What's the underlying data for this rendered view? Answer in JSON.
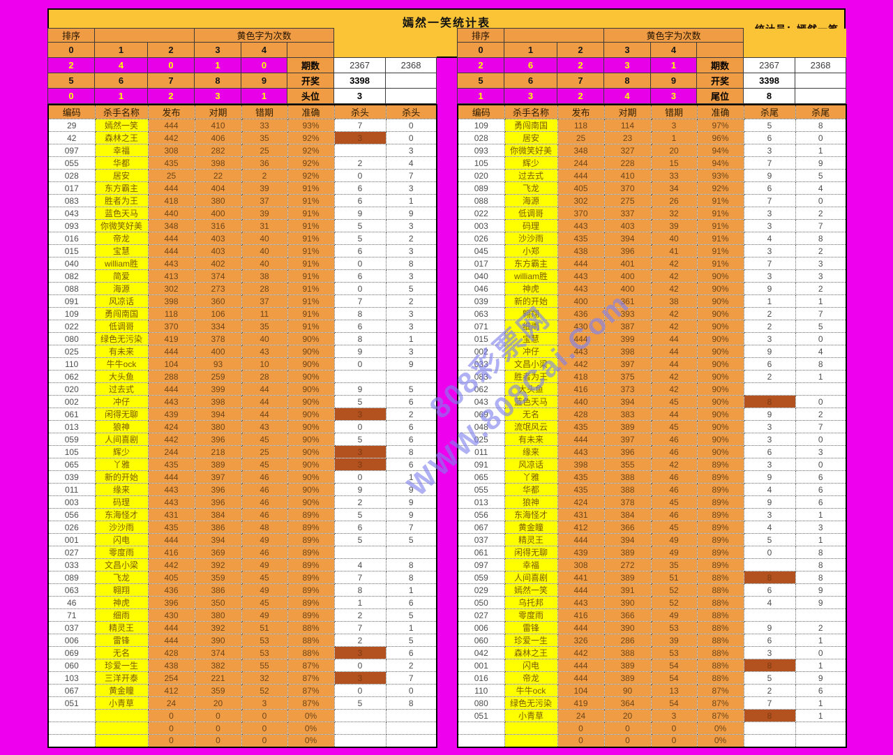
{
  "title": "嫣然一笑统计表",
  "statistician": "统计员：嫣然一笑",
  "colors": {
    "page_bg": "#EE00EE",
    "gold_band": "#FBC437",
    "orange_cell": "#F09C44",
    "yellow_cell": "#FFFF00",
    "magenta_row": "#E800E8",
    "highlight_cell": "#B3511F",
    "watermark": "#8080EE"
  },
  "watermark": {
    "line1": "808彩票网",
    "line2": "WWW.808Cai.Com"
  },
  "tables": [
    {
      "id": "head",
      "sort_label": "排序",
      "note": "黄色字为次数",
      "digits_top": [
        "0",
        "1",
        "2",
        "3",
        "4"
      ],
      "counts_top": [
        "2",
        "4",
        "0",
        "1",
        "0"
      ],
      "digits_bottom": [
        "5",
        "6",
        "7",
        "8",
        "9"
      ],
      "counts_bottom": [
        "0",
        "1",
        "2",
        "3",
        "1"
      ],
      "period_label": "期数",
      "periods": [
        "2367",
        "2368"
      ],
      "draw_label": "开奖",
      "draw_value": "3398",
      "position_label": "头位",
      "position_value": "3",
      "columns": [
        "编码",
        "杀手名称",
        "发布",
        "对期",
        "错期",
        "准确",
        "杀头",
        "杀头"
      ],
      "highlights": [
        1,
        23,
        26,
        27,
        42,
        44
      ],
      "rows": [
        [
          "29",
          "嫣然一笑",
          "444",
          "410",
          "33",
          "93%",
          "7",
          "0"
        ],
        [
          "42",
          "森林之王",
          "442",
          "406",
          "35",
          "92%",
          "3",
          "0"
        ],
        [
          "097",
          "幸福",
          "308",
          "282",
          "25",
          "92%",
          "",
          "3"
        ],
        [
          "055",
          "华都",
          "435",
          "398",
          "36",
          "92%",
          "2",
          "4"
        ],
        [
          "028",
          "居安",
          "25",
          "22",
          "2",
          "92%",
          "0",
          "7"
        ],
        [
          "017",
          "东方霸主",
          "444",
          "404",
          "39",
          "91%",
          "6",
          "3"
        ],
        [
          "083",
          "胜者为王",
          "418",
          "380",
          "37",
          "91%",
          "6",
          "1"
        ],
        [
          "043",
          "蓝色天马",
          "440",
          "400",
          "39",
          "91%",
          "9",
          "9"
        ],
        [
          "093",
          "你微笑好美",
          "348",
          "316",
          "31",
          "91%",
          "5",
          "3"
        ],
        [
          "016",
          "帝龙",
          "444",
          "403",
          "40",
          "91%",
          "5",
          "2"
        ],
        [
          "015",
          "宝慧",
          "444",
          "403",
          "40",
          "91%",
          "6",
          "3"
        ],
        [
          "040",
          "william胜",
          "443",
          "402",
          "40",
          "91%",
          "0",
          "8"
        ],
        [
          "082",
          "简爱",
          "413",
          "374",
          "38",
          "91%",
          "6",
          "3"
        ],
        [
          "088",
          "海源",
          "302",
          "273",
          "28",
          "91%",
          "0",
          "5"
        ],
        [
          "091",
          "风凉话",
          "398",
          "360",
          "37",
          "91%",
          "7",
          "2"
        ],
        [
          "109",
          "勇闯南国",
          "118",
          "106",
          "11",
          "91%",
          "8",
          "3"
        ],
        [
          "022",
          "低调哥",
          "370",
          "334",
          "35",
          "91%",
          "6",
          "3"
        ],
        [
          "080",
          "绿色无污染",
          "419",
          "378",
          "40",
          "90%",
          "8",
          "1"
        ],
        [
          "025",
          "有未来",
          "444",
          "400",
          "43",
          "90%",
          "9",
          "3"
        ],
        [
          "110",
          "牛牛ock",
          "104",
          "93",
          "10",
          "90%",
          "0",
          "9"
        ],
        [
          "062",
          "大头鱼",
          "288",
          "259",
          "28",
          "90%",
          "",
          ""
        ],
        [
          "020",
          "过去式",
          "444",
          "399",
          "44",
          "90%",
          "9",
          "5"
        ],
        [
          "002",
          "冲仔",
          "443",
          "398",
          "44",
          "90%",
          "5",
          "6"
        ],
        [
          "061",
          "闲得无聊",
          "439",
          "394",
          "44",
          "90%",
          "3",
          "2"
        ],
        [
          "013",
          "狼神",
          "424",
          "380",
          "43",
          "90%",
          "0",
          "6"
        ],
        [
          "059",
          "人间喜剧",
          "442",
          "396",
          "45",
          "90%",
          "5",
          "6"
        ],
        [
          "105",
          "辉少",
          "244",
          "218",
          "25",
          "90%",
          "3",
          "8"
        ],
        [
          "065",
          "丫雅",
          "435",
          "389",
          "45",
          "90%",
          "3",
          "6"
        ],
        [
          "039",
          "新的开始",
          "444",
          "397",
          "46",
          "90%",
          "0",
          "1"
        ],
        [
          "011",
          "缘来",
          "443",
          "396",
          "46",
          "90%",
          "9",
          "9"
        ],
        [
          "003",
          "码理",
          "443",
          "396",
          "46",
          "90%",
          "2",
          "9"
        ],
        [
          "056",
          "东海怪才",
          "431",
          "384",
          "46",
          "89%",
          "5",
          "9"
        ],
        [
          "026",
          "沙沙雨",
          "435",
          "386",
          "48",
          "89%",
          "6",
          "7"
        ],
        [
          "001",
          "闪电",
          "444",
          "394",
          "49",
          "89%",
          "5",
          "5"
        ],
        [
          "027",
          "零度雨",
          "416",
          "369",
          "46",
          "89%",
          "",
          ""
        ],
        [
          "033",
          "文昌小梁",
          "442",
          "392",
          "49",
          "89%",
          "4",
          "8"
        ],
        [
          "089",
          "飞龙",
          "405",
          "359",
          "45",
          "89%",
          "7",
          "8"
        ],
        [
          "063",
          "翱翔",
          "436",
          "386",
          "49",
          "89%",
          "8",
          "1"
        ],
        [
          "46",
          "神虎",
          "396",
          "350",
          "45",
          "89%",
          "1",
          "6"
        ],
        [
          "71",
          "细雨",
          "430",
          "380",
          "49",
          "89%",
          "2",
          "5"
        ],
        [
          "037",
          "精灵王",
          "444",
          "392",
          "51",
          "88%",
          "7",
          "1"
        ],
        [
          "006",
          "雷锋",
          "444",
          "390",
          "53",
          "88%",
          "2",
          "5"
        ],
        [
          "069",
          "无名",
          "428",
          "374",
          "53",
          "88%",
          "3",
          "6"
        ],
        [
          "060",
          "珍爱一生",
          "438",
          "382",
          "55",
          "87%",
          "0",
          "2"
        ],
        [
          "103",
          "三洋开泰",
          "254",
          "221",
          "32",
          "87%",
          "3",
          "7"
        ],
        [
          "067",
          "黄金瞳",
          "412",
          "359",
          "52",
          "87%",
          "0",
          "0"
        ],
        [
          "051",
          "小青草",
          "24",
          "20",
          "3",
          "87%",
          "5",
          "8"
        ],
        [
          "",
          "",
          "0",
          "0",
          "0",
          "0%",
          "",
          ""
        ],
        [
          "",
          "",
          "0",
          "0",
          "0",
          "0%",
          "",
          ""
        ],
        [
          "",
          "",
          "0",
          "0",
          "0",
          "0%",
          "",
          ""
        ]
      ]
    },
    {
      "id": "tail",
      "sort_label": "排序",
      "note": "黄色字为次数",
      "digits_top": [
        "0",
        "1",
        "2",
        "3",
        "4"
      ],
      "counts_top": [
        "2",
        "6",
        "2",
        "3",
        "1"
      ],
      "digits_bottom": [
        "5",
        "6",
        "7",
        "8",
        "9"
      ],
      "counts_bottom": [
        "1",
        "3",
        "2",
        "4",
        "3"
      ],
      "period_label": "期数",
      "periods": [
        "2367",
        "2368"
      ],
      "draw_label": "开奖",
      "draw_value": "3398",
      "position_label": "尾位",
      "position_value": "8",
      "columns": [
        "编码",
        "杀手名称",
        "发布",
        "对期",
        "错期",
        "准确",
        "杀尾",
        "杀尾"
      ],
      "highlights": [
        22,
        36,
        43,
        47
      ],
      "rows": [
        [
          "109",
          "勇闯南国",
          "118",
          "114",
          "3",
          "97%",
          "5",
          "8"
        ],
        [
          "028",
          "居安",
          "25",
          "23",
          "1",
          "96%",
          "6",
          "0"
        ],
        [
          "093",
          "你微笑好美",
          "348",
          "327",
          "20",
          "94%",
          "3",
          "1"
        ],
        [
          "105",
          "辉少",
          "244",
          "228",
          "15",
          "94%",
          "7",
          "9"
        ],
        [
          "020",
          "过去式",
          "444",
          "410",
          "33",
          "93%",
          "9",
          "5"
        ],
        [
          "089",
          "飞龙",
          "405",
          "370",
          "34",
          "92%",
          "6",
          "4"
        ],
        [
          "088",
          "海源",
          "302",
          "275",
          "26",
          "91%",
          "7",
          "0"
        ],
        [
          "022",
          "低调哥",
          "370",
          "337",
          "32",
          "91%",
          "3",
          "2"
        ],
        [
          "003",
          "码理",
          "443",
          "403",
          "39",
          "91%",
          "3",
          "7"
        ],
        [
          "026",
          "沙沙雨",
          "435",
          "394",
          "40",
          "91%",
          "4",
          "8"
        ],
        [
          "045",
          "小郑",
          "438",
          "396",
          "41",
          "91%",
          "3",
          "2"
        ],
        [
          "017",
          "东方霸主",
          "444",
          "401",
          "42",
          "91%",
          "7",
          "3"
        ],
        [
          "040",
          "william胜",
          "443",
          "400",
          "42",
          "90%",
          "3",
          "3"
        ],
        [
          "046",
          "神虎",
          "443",
          "400",
          "42",
          "90%",
          "9",
          "2"
        ],
        [
          "039",
          "新的开始",
          "400",
          "361",
          "38",
          "90%",
          "1",
          "1"
        ],
        [
          "063",
          "翱翔",
          "436",
          "393",
          "42",
          "90%",
          "2",
          "7"
        ],
        [
          "071",
          "细雨",
          "430",
          "387",
          "42",
          "90%",
          "2",
          "5"
        ],
        [
          "015",
          "宝慧",
          "444",
          "399",
          "44",
          "90%",
          "3",
          "0"
        ],
        [
          "002",
          "冲仔",
          "443",
          "398",
          "44",
          "90%",
          "9",
          "4"
        ],
        [
          "033",
          "文昌小梁",
          "442",
          "397",
          "44",
          "90%",
          "6",
          "8"
        ],
        [
          "083",
          "胜者为王",
          "418",
          "375",
          "42",
          "90%",
          "2",
          "1"
        ],
        [
          "062",
          "大头鱼",
          "416",
          "373",
          "42",
          "90%",
          "",
          ""
        ],
        [
          "043",
          "蓝色天马",
          "440",
          "394",
          "45",
          "90%",
          "8",
          "0"
        ],
        [
          "069",
          "无名",
          "428",
          "383",
          "44",
          "90%",
          "9",
          "2"
        ],
        [
          "048",
          "流氓风云",
          "435",
          "389",
          "45",
          "90%",
          "3",
          "7"
        ],
        [
          "025",
          "有未来",
          "444",
          "397",
          "46",
          "90%",
          "3",
          "0"
        ],
        [
          "011",
          "缘来",
          "443",
          "396",
          "46",
          "90%",
          "6",
          "3"
        ],
        [
          "091",
          "风凉话",
          "398",
          "355",
          "42",
          "89%",
          "3",
          "0"
        ],
        [
          "065",
          "丫雅",
          "435",
          "388",
          "46",
          "89%",
          "9",
          "6"
        ],
        [
          "055",
          "华都",
          "435",
          "388",
          "46",
          "89%",
          "4",
          "6"
        ],
        [
          "013",
          "狼神",
          "424",
          "378",
          "45",
          "89%",
          "9",
          "6"
        ],
        [
          "056",
          "东海怪才",
          "431",
          "384",
          "46",
          "89%",
          "3",
          "1"
        ],
        [
          "067",
          "黄金瞳",
          "412",
          "366",
          "45",
          "89%",
          "4",
          "3"
        ],
        [
          "037",
          "精灵王",
          "444",
          "394",
          "49",
          "89%",
          "5",
          "1"
        ],
        [
          "061",
          "闲得无聊",
          "439",
          "389",
          "49",
          "89%",
          "0",
          "8"
        ],
        [
          "097",
          "幸福",
          "308",
          "272",
          "35",
          "89%",
          "",
          "8"
        ],
        [
          "059",
          "人间喜剧",
          "441",
          "389",
          "51",
          "88%",
          "8",
          "8"
        ],
        [
          "029",
          "嫣然一笑",
          "444",
          "391",
          "52",
          "88%",
          "6",
          "9"
        ],
        [
          "050",
          "乌托邦",
          "443",
          "390",
          "52",
          "88%",
          "4",
          "9"
        ],
        [
          "027",
          "零度雨",
          "416",
          "366",
          "49",
          "88%",
          "",
          ""
        ],
        [
          "006",
          "雷锋",
          "444",
          "390",
          "53",
          "88%",
          "9",
          "2"
        ],
        [
          "060",
          "珍爱一生",
          "326",
          "286",
          "39",
          "88%",
          "6",
          "1"
        ],
        [
          "042",
          "森林之王",
          "442",
          "388",
          "53",
          "88%",
          "3",
          "0"
        ],
        [
          "001",
          "闪电",
          "444",
          "389",
          "54",
          "88%",
          "8",
          "1"
        ],
        [
          "016",
          "帝龙",
          "444",
          "389",
          "54",
          "88%",
          "5",
          "9"
        ],
        [
          "110",
          "牛牛ock",
          "104",
          "90",
          "13",
          "87%",
          "2",
          "6"
        ],
        [
          "080",
          "绿色无污染",
          "419",
          "364",
          "54",
          "87%",
          "7",
          "1"
        ],
        [
          "051",
          "小青草",
          "24",
          "20",
          "3",
          "87%",
          "8",
          "1"
        ],
        [
          "",
          "",
          "0",
          "0",
          "0",
          "0%",
          "",
          ""
        ],
        [
          "",
          "",
          "0",
          "0",
          "0",
          "0%",
          "",
          ""
        ]
      ]
    }
  ]
}
